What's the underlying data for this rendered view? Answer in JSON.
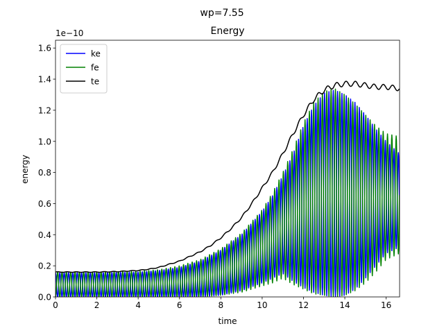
{
  "suptitle": "wp=7.55",
  "chart_data": {
    "type": "line",
    "title": "Energy",
    "xlabel": "time",
    "ylabel": "energy",
    "offset_text": "1e−10",
    "xlim": [
      0,
      16.65
    ],
    "ylim": [
      0,
      1.65
    ],
    "xticks": [
      0,
      2,
      4,
      6,
      8,
      10,
      12,
      14,
      16
    ],
    "yticks": [
      0.0,
      0.2,
      0.4,
      0.6,
      0.8,
      1.0,
      1.2,
      1.4,
      1.6
    ],
    "xtick_labels": [
      "0",
      "2",
      "4",
      "6",
      "8",
      "10",
      "12",
      "14",
      "16"
    ],
    "ytick_labels": [
      "0.0",
      "0.2",
      "0.4",
      "0.6",
      "0.8",
      "1.0",
      "1.2",
      "1.4",
      "1.6"
    ],
    "grid": false,
    "legend_position": "upper left",
    "oscillation_period": 0.21,
    "series": [
      {
        "name": "ke",
        "color": "#0000ff",
        "kind": "oscillating",
        "envelope_x": [
          0,
          2,
          4,
          5,
          6,
          7,
          8,
          9,
          10,
          10.5,
          11,
          11.5,
          12,
          12.5,
          13,
          13.5,
          14,
          14.5,
          15,
          15.5,
          16,
          16.65
        ],
        "envelope_max": [
          0.155,
          0.155,
          0.16,
          0.17,
          0.19,
          0.23,
          0.3,
          0.4,
          0.55,
          0.65,
          0.78,
          0.92,
          1.1,
          1.23,
          1.31,
          1.33,
          1.3,
          1.25,
          1.17,
          1.08,
          1.0,
          0.92
        ],
        "envelope_min": [
          0.0,
          0.0,
          0.0,
          0.0,
          0.0,
          0.0,
          0.01,
          0.04,
          0.09,
          0.12,
          0.15,
          0.1,
          0.06,
          0.03,
          0.01,
          0.0,
          0.01,
          0.05,
          0.12,
          0.2,
          0.28,
          0.32
        ]
      },
      {
        "name": "fe",
        "color": "#008000",
        "kind": "oscillating",
        "envelope_x": [
          0,
          2,
          4,
          5,
          6,
          7,
          8,
          9,
          10,
          10.5,
          11,
          11.5,
          12,
          12.5,
          13,
          13.5,
          14,
          14.5,
          15,
          15.5,
          16,
          16.65
        ],
        "envelope_max": [
          0.16,
          0.16,
          0.165,
          0.175,
          0.2,
          0.24,
          0.31,
          0.41,
          0.56,
          0.67,
          0.8,
          0.95,
          1.12,
          1.25,
          1.32,
          1.34,
          1.3,
          1.24,
          1.17,
          1.1,
          1.05,
          1.03
        ],
        "envelope_min": [
          0.0,
          0.0,
          0.0,
          0.0,
          0.0,
          0.0,
          0.01,
          0.03,
          0.07,
          0.09,
          0.12,
          0.08,
          0.05,
          0.02,
          0.01,
          0.0,
          0.01,
          0.04,
          0.09,
          0.16,
          0.24,
          0.28
        ]
      },
      {
        "name": "te",
        "color": "#000000",
        "kind": "line",
        "x": [
          0,
          1,
          2,
          3,
          4,
          4.5,
          5,
          5.5,
          6,
          6.5,
          7,
          7.5,
          8,
          8.5,
          9,
          9.5,
          10,
          10.5,
          11,
          11.5,
          12,
          12.5,
          13,
          13.5,
          14,
          14.5,
          15,
          15.5,
          16,
          16.65
        ],
        "y": [
          0.16,
          0.16,
          0.16,
          0.163,
          0.17,
          0.178,
          0.19,
          0.21,
          0.23,
          0.26,
          0.29,
          0.33,
          0.38,
          0.44,
          0.51,
          0.6,
          0.7,
          0.8,
          0.92,
          1.05,
          1.17,
          1.27,
          1.33,
          1.36,
          1.37,
          1.37,
          1.36,
          1.35,
          1.35,
          1.34
        ]
      }
    ]
  }
}
